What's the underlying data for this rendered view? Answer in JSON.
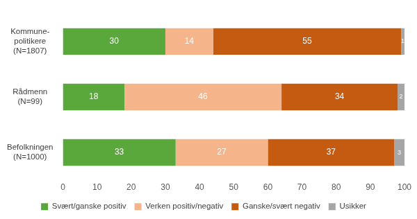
{
  "chart_data": {
    "type": "bar",
    "orientation": "horizontal",
    "stacked": true,
    "data_labels": true,
    "grid": false,
    "legend": "bottom",
    "categories": [
      [
        "Kommune-",
        "politikere",
        "(N=1807)"
      ],
      [
        "Rådmenn",
        "(N=99)"
      ],
      [
        "Befolkningen",
        "(N=1000)"
      ]
    ],
    "series": [
      {
        "name": "Svært/ganske positiv",
        "color": "#5aa83c",
        "values": [
          30,
          18,
          33
        ]
      },
      {
        "name": "Verken positiv/negativ",
        "color": "#f5b489",
        "values": [
          14,
          46,
          27
        ]
      },
      {
        "name": "Ganske/svært negativ",
        "color": "#c55a11",
        "values": [
          55,
          34,
          37
        ]
      },
      {
        "name": "Usikker",
        "color": "#a6a6a6",
        "values": [
          1,
          2,
          3
        ]
      }
    ],
    "xlim": [
      0,
      100
    ],
    "xticks": [
      0,
      10,
      20,
      30,
      40,
      50,
      60,
      70,
      80,
      90,
      100
    ]
  }
}
